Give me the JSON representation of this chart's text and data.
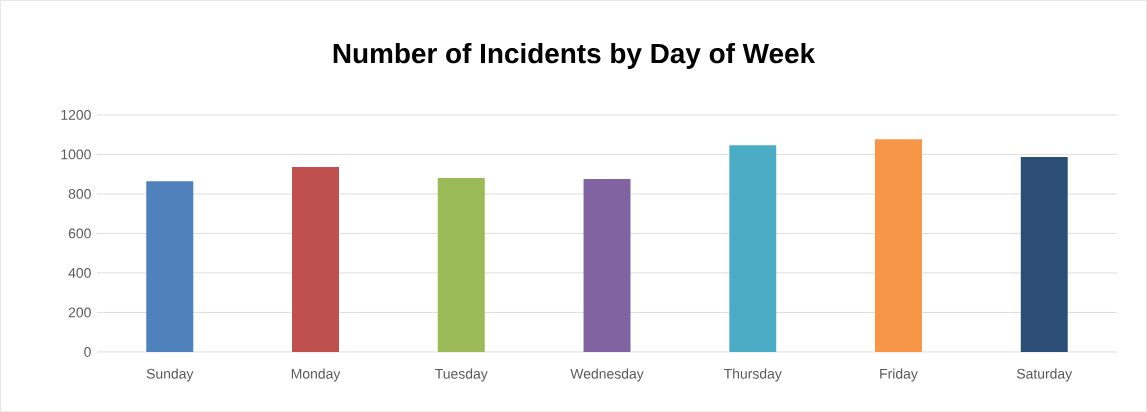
{
  "chart_data": {
    "type": "bar",
    "title": "Number of Incidents by Day of Week",
    "categories": [
      "Sunday",
      "Monday",
      "Tuesday",
      "Wednesday",
      "Thursday",
      "Friday",
      "Saturday"
    ],
    "values": [
      864,
      936,
      880,
      875,
      1046,
      1077,
      987
    ],
    "colors": [
      "#4f81bd",
      "#c0504d",
      "#9bbb59",
      "#8064a2",
      "#4bacc6",
      "#f79646",
      "#2c4d75"
    ],
    "ylim": [
      0,
      1200
    ],
    "yticks": [
      0,
      200,
      400,
      600,
      800,
      1000,
      1200
    ],
    "grid": "y"
  }
}
